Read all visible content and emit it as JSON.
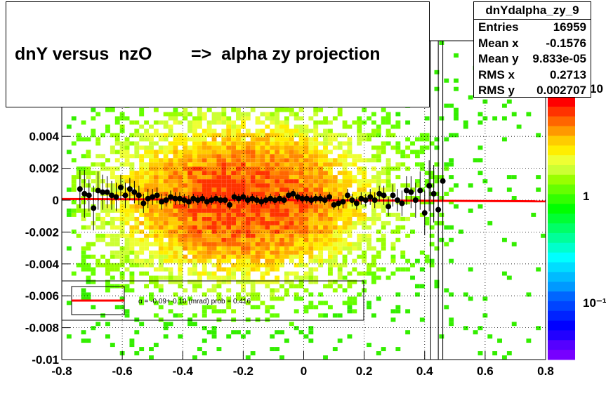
{
  "title": "dnY versus  nzO        =>  alpha zy projection",
  "stats": {
    "name": "dnYdalpha_zy_9",
    "rows": [
      {
        "label": "Entries",
        "value": "16959"
      },
      {
        "label": "Mean x",
        "value": "-0.1576"
      },
      {
        "label": "Mean y",
        "value": "9.833e-05"
      },
      {
        "label": "RMS x",
        "value": "0.2713"
      },
      {
        "label": "RMS y",
        "value": "0.002707"
      }
    ]
  },
  "fit_legend": "α =   -0.09+-0.10 (mrad) prob = 0.416",
  "colors": {
    "fit_line": "#ff0000",
    "points": "#000000"
  },
  "chart_data": {
    "type": "heatmap",
    "xlim": [
      -0.8,
      0.8
    ],
    "ylim": [
      -0.01,
      0.01
    ],
    "x_ticks": [
      "-0.8",
      "-0.6",
      "-0.4",
      "-0.2",
      "0",
      "0.2",
      "0.4",
      "0.6",
      "0.8"
    ],
    "y_ticks": [
      "-0.01",
      "-0.008",
      "-0.006",
      "-0.004",
      "-0.002",
      "0",
      "0.002",
      "0.004"
    ],
    "colorbar_labels": [
      "1",
      "10⁻¹",
      "10"
    ],
    "colorbar_log": true,
    "fit_line": {
      "slope": -9e-05,
      "intercept": 0.0
    },
    "vertical_lines_x": [
      0.42,
      0.445,
      0.46
    ],
    "profile": {
      "x": [
        -0.74,
        -0.725,
        -0.71,
        -0.695,
        -0.68,
        -0.665,
        -0.65,
        -0.635,
        -0.62,
        -0.605,
        -0.59,
        -0.575,
        -0.56,
        -0.545,
        -0.53,
        -0.515,
        -0.5,
        -0.485,
        -0.47,
        -0.455,
        -0.44,
        -0.425,
        -0.41,
        -0.395,
        -0.38,
        -0.365,
        -0.35,
        -0.335,
        -0.32,
        -0.305,
        -0.29,
        -0.275,
        -0.26,
        -0.245,
        -0.23,
        -0.215,
        -0.2,
        -0.185,
        -0.17,
        -0.155,
        -0.14,
        -0.125,
        -0.11,
        -0.095,
        -0.08,
        -0.065,
        -0.05,
        -0.035,
        -0.02,
        -0.005,
        0.01,
        0.025,
        0.04,
        0.055,
        0.07,
        0.085,
        0.1,
        0.115,
        0.13,
        0.145,
        0.16,
        0.175,
        0.19,
        0.205,
        0.22,
        0.235,
        0.25,
        0.265,
        0.28,
        0.295,
        0.31,
        0.325,
        0.34,
        0.355,
        0.37,
        0.385,
        0.4,
        0.415,
        0.43,
        0.445,
        0.46
      ],
      "y": [
        0.0007,
        0.0004,
        0.0003,
        -0.0005,
        0.0006,
        0.0005,
        0.0005,
        0.0003,
        0.0002,
        0.0008,
        0.0003,
        0.0007,
        0.0005,
        0.0003,
        -0.0002,
        0.0001,
        0.0002,
        0.0003,
        -0.0001,
        0.0,
        0.0002,
        0.0001,
        0.0001,
        0.0,
        -0.0001,
        0.0001,
        0.0,
        0.0001,
        -0.0001,
        0.0,
        0.0001,
        0.0,
        0.0,
        -0.0003,
        0.0002,
        0.0001,
        0.0002,
        0.0,
        0.0001,
        0.0,
        -0.0001,
        0.0,
        0.0001,
        0.0,
        0.0001,
        0.0,
        0.0003,
        0.0004,
        0.0002,
        0.0001,
        0.0001,
        0.0,
        0.0001,
        0.0001,
        0.0,
        0.0002,
        -0.0003,
        -0.0002,
        -0.0001,
        0.0003,
        0.0,
        -0.0002,
        0.0001,
        0.0,
        0.0002,
        0.0,
        0.0004,
        0.0003,
        -0.0004,
        0.0003,
        0.0,
        -0.0002,
        0.0006,
        0.0005,
        0.0,
        0.0006,
        -0.0008,
        0.0009,
        0.0004,
        -0.0006,
        0.0012
      ],
      "err": [
        0.0012,
        0.0015,
        0.001,
        0.0014,
        0.0012,
        0.0011,
        0.001,
        0.0009,
        0.0009,
        0.0008,
        0.0008,
        0.0007,
        0.0007,
        0.0006,
        0.0006,
        0.0006,
        0.0005,
        0.0005,
        0.0005,
        0.0004,
        0.0004,
        0.0004,
        0.0004,
        0.0004,
        0.0004,
        0.0003,
        0.0003,
        0.0003,
        0.0003,
        0.0003,
        0.0003,
        0.0003,
        0.0003,
        0.0003,
        0.0003,
        0.0003,
        0.0003,
        0.0003,
        0.0003,
        0.0003,
        0.0003,
        0.0003,
        0.0003,
        0.0003,
        0.0003,
        0.0003,
        0.0003,
        0.0003,
        0.0003,
        0.0003,
        0.0003,
        0.0003,
        0.0003,
        0.0003,
        0.0003,
        0.0003,
        0.0003,
        0.0004,
        0.0004,
        0.0004,
        0.0004,
        0.0004,
        0.0004,
        0.0004,
        0.0005,
        0.0005,
        0.0005,
        0.0006,
        0.0006,
        0.0007,
        0.0007,
        0.0008,
        0.0009,
        0.001,
        0.0011,
        0.0012,
        0.0014,
        0.0016,
        0.0018,
        0.002,
        0.0025
      ]
    }
  }
}
